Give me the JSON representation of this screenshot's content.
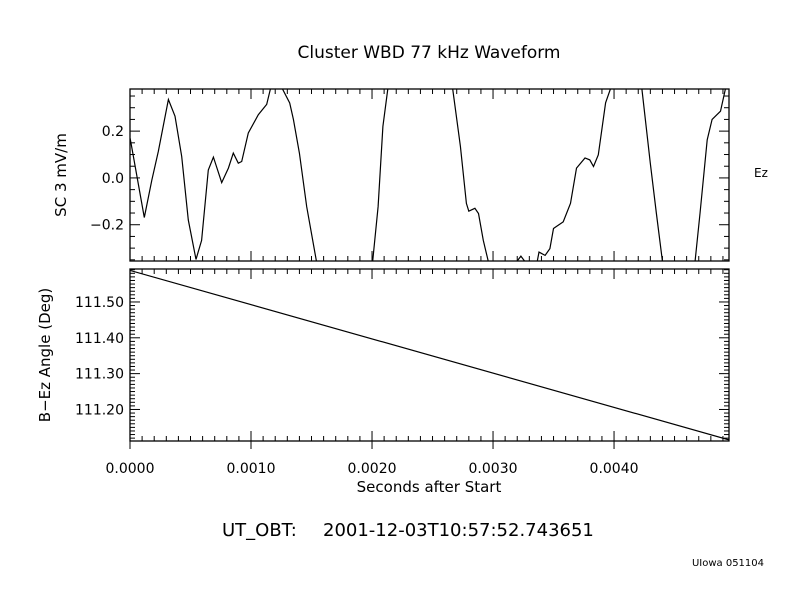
{
  "chart_data": [
    {
      "type": "line",
      "title": "Cluster WBD 77 kHz Waveform",
      "ylabel": "SC 3 mV/m",
      "series_label": "Ez",
      "xlim": [
        0.0,
        0.00495
      ],
      "ylim": [
        -0.355,
        0.38
      ],
      "yticks": [
        -0.2,
        0.0,
        0.2
      ],
      "ytick_labels": [
        "−0.2",
        "0.0",
        "0.2"
      ],
      "grid": false,
      "color": "#000000",
      "x": [
        0.0,
        6e-06,
        0.000118,
        0.00018,
        0.000234,
        0.000317,
        0.000372,
        0.000427,
        0.000482,
        0.000545,
        0.000592,
        0.000647,
        0.000689,
        0.000758,
        0.000813,
        0.000854,
        0.000895,
        0.000923,
        0.000978,
        0.00106,
        0.00113,
        0.00116,
        0.00121,
        0.00126,
        0.00132,
        0.00135,
        0.0014,
        0.00146,
        0.00154,
        0.00177,
        0.002006,
        0.00205,
        0.00209,
        0.00213,
        0.0024,
        0.002667,
        0.00273,
        0.00278,
        0.0028,
        0.00285,
        0.00288,
        0.00292,
        0.00296,
        0.00308,
        0.0032,
        0.00323,
        0.00326,
        0.00331,
        0.003366,
        0.00338,
        0.00343,
        0.00347,
        0.0035,
        0.00352,
        0.00358,
        0.00364,
        0.00369,
        0.00376,
        0.0038,
        0.00383,
        0.00387,
        0.00393,
        0.00397,
        0.0041,
        0.00423,
        0.0043,
        0.00435,
        0.0044,
        0.00453,
        0.00467,
        0.00471,
        0.00477,
        0.00481,
        0.00488,
        0.00492
      ],
      "y": [
        0.17,
        0.156,
        -0.169,
        -0.01,
        0.113,
        0.335,
        0.264,
        0.092,
        -0.18,
        -0.348,
        -0.267,
        0.034,
        0.089,
        -0.02,
        0.042,
        0.106,
        0.063,
        0.07,
        0.192,
        0.27,
        0.314,
        0.38,
        0.42,
        0.38,
        0.32,
        0.25,
        0.106,
        -0.123,
        -0.355,
        -0.6,
        -0.355,
        -0.123,
        0.22,
        0.38,
        0.7,
        0.38,
        0.135,
        -0.109,
        -0.142,
        -0.13,
        -0.152,
        -0.267,
        -0.355,
        -0.42,
        -0.355,
        -0.334,
        -0.355,
        -0.38,
        -0.355,
        -0.317,
        -0.331,
        -0.302,
        -0.216,
        -0.209,
        -0.188,
        -0.109,
        0.042,
        0.085,
        0.077,
        0.049,
        0.099,
        0.321,
        0.38,
        0.5,
        0.38,
        0.063,
        -0.152,
        -0.355,
        -0.5,
        -0.355,
        -0.152,
        0.163,
        0.25,
        0.285,
        0.38
      ]
    },
    {
      "type": "line",
      "ylabel": "B−Ez Angle (Deg)",
      "xlabel": "Seconds after Start",
      "xlim": [
        0.0,
        0.00495
      ],
      "ylim": [
        111.112,
        111.592
      ],
      "yticks": [
        111.2,
        111.3,
        111.4,
        111.5
      ],
      "ytick_labels": [
        "111.20",
        "111.30",
        "111.40",
        "111.50"
      ],
      "xticks": [
        0.0,
        0.001,
        0.002,
        0.003,
        0.004
      ],
      "xtick_labels": [
        "0.0000",
        "0.0010",
        "0.0020",
        "0.0030",
        "0.0040"
      ],
      "grid": false,
      "color": "#000000",
      "x": [
        0.0,
        0.00495
      ],
      "y": [
        111.588,
        111.115
      ]
    }
  ],
  "footer": {
    "timestamp_label": "UT_OBT:",
    "timestamp_value": "2001-12-03T10:57:52.743651",
    "credit": "UIowa 051104"
  }
}
